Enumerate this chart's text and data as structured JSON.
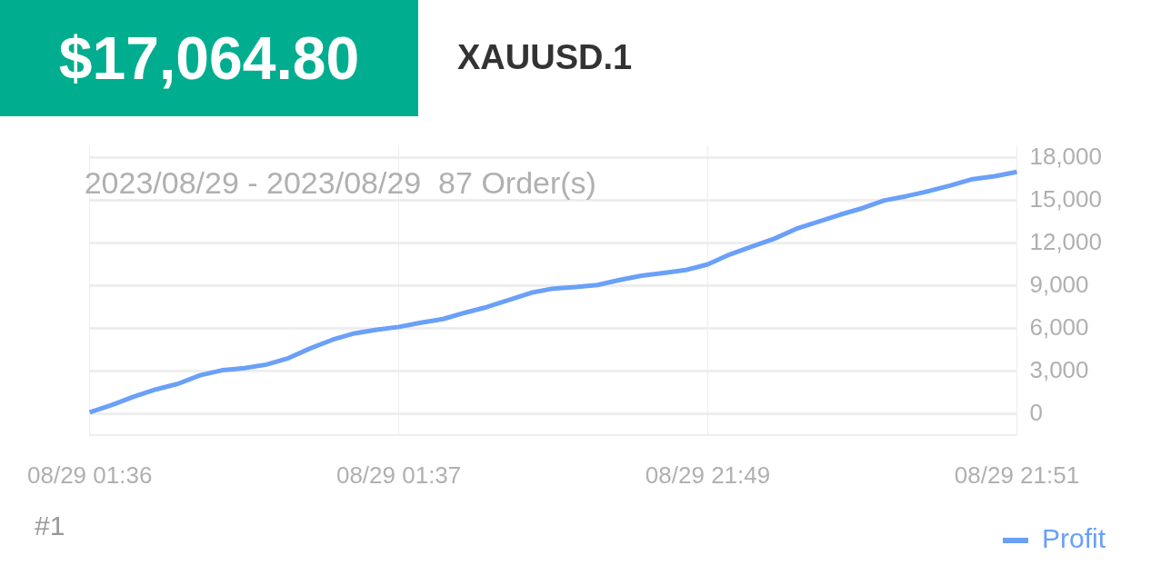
{
  "chart_data": {
    "type": "line",
    "title": "$17,064.80",
    "subtitle": "XAUUSD.1",
    "annotations": [
      "2023/08/29 - 2023/08/29  87 Order(s)",
      "#1"
    ],
    "categories": [
      "08/29 01:36",
      null,
      null,
      null,
      null,
      null,
      null,
      null,
      null,
      null,
      null,
      null,
      null,
      null,
      "08/29 01:37",
      null,
      null,
      null,
      null,
      null,
      null,
      null,
      null,
      null,
      null,
      null,
      null,
      null,
      "08/29 21:49",
      null,
      null,
      null,
      null,
      null,
      null,
      null,
      null,
      null,
      null,
      null,
      null,
      null,
      "08/29 21:51"
    ],
    "series": [
      {
        "name": "Profit",
        "color": "#6aa0f8",
        "values": [
          100,
          600,
          1200,
          1700,
          2100,
          2700,
          3050,
          3200,
          3450,
          3900,
          4600,
          5200,
          5650,
          5900,
          6100,
          6400,
          6650,
          7100,
          7500,
          8000,
          8500,
          8800,
          8900,
          9050,
          9400,
          9700,
          9900,
          10100,
          10500,
          11200,
          11750,
          12300,
          13000,
          13500,
          14000,
          14450,
          15000,
          15300,
          15650,
          16050,
          16500,
          16700,
          17000
        ]
      }
    ],
    "ylim": [
      -1500,
      18900
    ],
    "yticks": [
      0,
      {
        "value": 3000,
        "label": "3,000"
      },
      {
        "value": 6000,
        "label": "6,000"
      },
      {
        "value": 9000,
        "label": "9,000"
      },
      {
        "value": 12000,
        "label": "12,000"
      },
      {
        "value": 15000,
        "label": "15,000"
      },
      {
        "value": 18000,
        "label": "18,000"
      }
    ],
    "grid": true,
    "legend": "bottom right",
    "marker": "none",
    "line_style": "solid"
  }
}
